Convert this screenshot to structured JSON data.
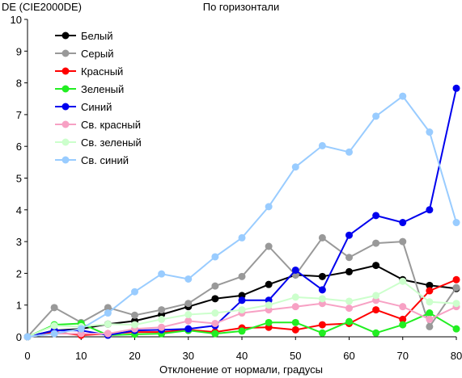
{
  "chart_data": {
    "type": "line",
    "title": "По горизонтали",
    "ylabel": "DE (CIE2000DE)",
    "xlabel": "Отклонение от нормали, градусы",
    "xlim": [
      0,
      80
    ],
    "ylim": [
      0,
      10
    ],
    "x_ticks": [
      0,
      10,
      20,
      30,
      40,
      50,
      60,
      70,
      80
    ],
    "y_ticks": [
      0,
      1,
      2,
      3,
      4,
      5,
      6,
      7,
      8,
      9,
      10
    ],
    "grid": false,
    "legend_position": "top-left",
    "x": [
      0,
      5,
      10,
      15,
      20,
      25,
      30,
      35,
      40,
      45,
      50,
      55,
      60,
      65,
      70,
      75,
      80
    ],
    "series": [
      {
        "name": "Белый",
        "color": "#000000",
        "values": [
          0,
          0.2,
          0.25,
          0.4,
          0.5,
          0.7,
          0.95,
          1.2,
          1.3,
          1.65,
          1.95,
          1.9,
          2.05,
          2.25,
          1.8,
          1.62,
          1.52
        ]
      },
      {
        "name": "Серый",
        "color": "#999999",
        "values": [
          0,
          0.92,
          0.45,
          0.92,
          0.68,
          0.85,
          1.05,
          1.6,
          1.9,
          2.85,
          1.95,
          3.12,
          2.5,
          2.95,
          3.0,
          0.32,
          1.55
        ]
      },
      {
        "name": "Красный",
        "color": "#ff0000",
        "values": [
          0,
          0.15,
          0.05,
          0.1,
          0.15,
          0.15,
          0.22,
          0.15,
          0.28,
          0.3,
          0.22,
          0.38,
          0.42,
          0.85,
          0.55,
          1.45,
          1.8
        ]
      },
      {
        "name": "Зеленый",
        "color": "#22ee22",
        "values": [
          0,
          0.38,
          0.42,
          0.05,
          0.08,
          0.1,
          0.2,
          0.1,
          0.18,
          0.45,
          0.45,
          0.12,
          0.48,
          0.12,
          0.38,
          0.75,
          0.25
        ]
      },
      {
        "name": "Синий",
        "color": "#0000ee",
        "values": [
          0,
          0.2,
          0.2,
          0.05,
          0.2,
          0.22,
          0.25,
          0.35,
          1.15,
          1.15,
          2.1,
          1.48,
          3.2,
          3.82,
          3.6,
          4.0,
          7.83
        ]
      },
      {
        "name": "Св. красный",
        "color": "#f7a1c4",
        "values": [
          0,
          0.1,
          0.1,
          0.1,
          0.25,
          0.3,
          0.5,
          0.42,
          0.75,
          0.85,
          0.95,
          1.05,
          0.9,
          1.15,
          0.95,
          0.55,
          0.95
        ]
      },
      {
        "name": "Св. зеленый",
        "color": "#ccffcc",
        "values": [
          0,
          0.35,
          0.32,
          0.4,
          0.38,
          0.55,
          0.7,
          0.75,
          0.85,
          1.0,
          1.25,
          1.2,
          1.12,
          1.3,
          1.75,
          1.1,
          1.05
        ]
      },
      {
        "name": "Св. синий",
        "color": "#99ccff",
        "values": [
          0,
          0.1,
          0.25,
          0.75,
          1.42,
          1.98,
          1.82,
          2.52,
          3.12,
          4.1,
          5.35,
          6.02,
          5.82,
          6.95,
          7.58,
          6.45,
          3.6
        ]
      }
    ]
  }
}
